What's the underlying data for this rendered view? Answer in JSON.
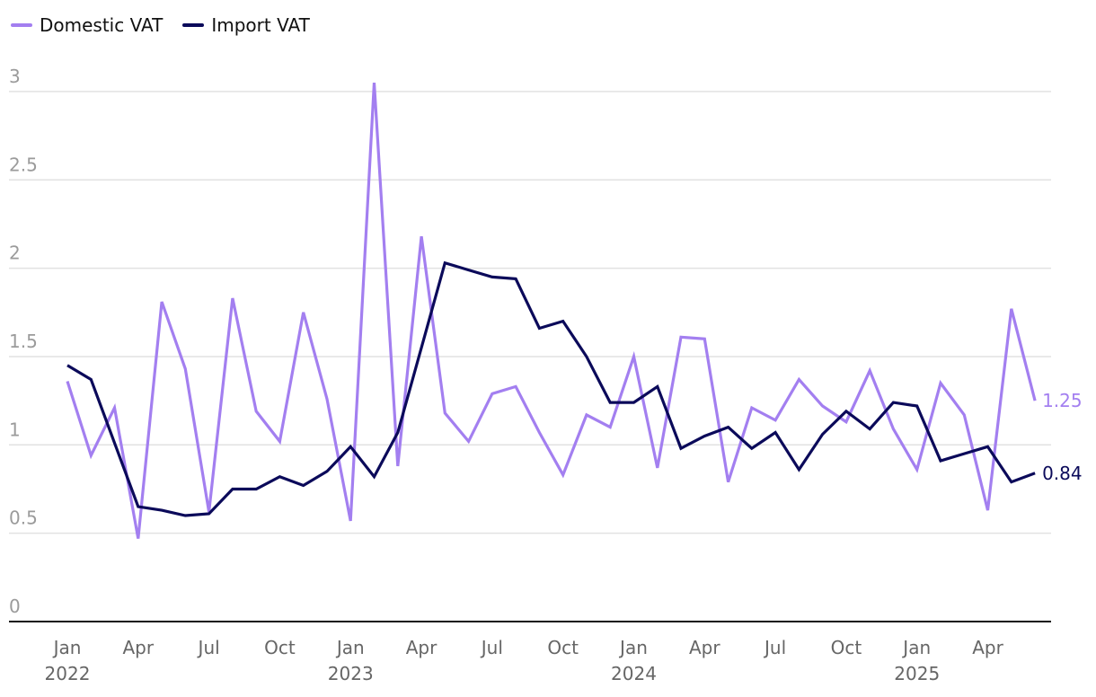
{
  "chart_data": {
    "type": "line",
    "x_start": "2022-01",
    "x": [
      "2022-01",
      "2022-02",
      "2022-03",
      "2022-04",
      "2022-05",
      "2022-06",
      "2022-07",
      "2022-08",
      "2022-09",
      "2022-10",
      "2022-11",
      "2022-12",
      "2023-01",
      "2023-02",
      "2023-03",
      "2023-04",
      "2023-05",
      "2023-06",
      "2023-07",
      "2023-08",
      "2023-09",
      "2023-10",
      "2023-11",
      "2023-12",
      "2024-01",
      "2024-02",
      "2024-03",
      "2024-04",
      "2024-05",
      "2024-06",
      "2024-07",
      "2024-08",
      "2024-09",
      "2024-10",
      "2024-11",
      "2024-12",
      "2025-01",
      "2025-02",
      "2025-03",
      "2025-04",
      "2025-05",
      "2025-06"
    ],
    "series": [
      {
        "name": "Domestic VAT",
        "color": "#a37ff0",
        "end_label": "1.25",
        "values": [
          1.36,
          0.94,
          1.21,
          0.47,
          1.81,
          1.43,
          0.62,
          1.83,
          1.19,
          1.02,
          1.75,
          1.26,
          0.57,
          3.05,
          0.88,
          2.18,
          1.18,
          1.02,
          1.29,
          1.33,
          1.07,
          0.83,
          1.17,
          1.1,
          1.5,
          0.87,
          1.61,
          1.6,
          0.79,
          1.21,
          1.14,
          1.37,
          1.22,
          1.13,
          1.42,
          1.09,
          0.86,
          1.35,
          1.17,
          0.63,
          1.77,
          1.25
        ]
      },
      {
        "name": "Import VAT",
        "color": "#0b0a5a",
        "end_label": "0.84",
        "values": [
          1.45,
          1.37,
          null,
          0.65,
          0.63,
          0.6,
          0.61,
          0.75,
          0.75,
          0.82,
          0.77,
          0.85,
          0.99,
          0.82,
          1.07,
          1.55,
          2.03,
          1.99,
          1.95,
          1.94,
          1.66,
          1.7,
          1.5,
          1.24,
          1.24,
          1.33,
          0.98,
          1.05,
          1.1,
          0.98,
          1.07,
          0.86,
          1.06,
          1.19,
          1.09,
          1.24,
          1.22,
          0.91,
          0.95,
          0.99,
          0.79,
          0.84
        ]
      }
    ],
    "y_ticks": [
      "0",
      "0.5",
      "1",
      "1.5",
      "2",
      "2.5",
      "3"
    ],
    "ylim": [
      0,
      3.1
    ],
    "x_tick_labels": [
      {
        "month": "Jan",
        "year": "2022",
        "index": 0
      },
      {
        "month": "Apr",
        "year": "",
        "index": 3
      },
      {
        "month": "Jul",
        "year": "",
        "index": 6
      },
      {
        "month": "Oct",
        "year": "",
        "index": 9
      },
      {
        "month": "Jan",
        "year": "2023",
        "index": 12
      },
      {
        "month": "Apr",
        "year": "",
        "index": 15
      },
      {
        "month": "Jul",
        "year": "",
        "index": 18
      },
      {
        "month": "Oct",
        "year": "",
        "index": 21
      },
      {
        "month": "Jan",
        "year": "2024",
        "index": 24
      },
      {
        "month": "Apr",
        "year": "",
        "index": 27
      },
      {
        "month": "Jul",
        "year": "",
        "index": 30
      },
      {
        "month": "Oct",
        "year": "",
        "index": 33
      },
      {
        "month": "Jan",
        "year": "2025",
        "index": 36
      },
      {
        "month": "Apr",
        "year": "",
        "index": 39
      }
    ],
    "grid": true,
    "legend": "top-left",
    "title": "",
    "xlabel": "",
    "ylabel": ""
  },
  "legend": {
    "domestic_label": "Domestic VAT",
    "import_label": "Import VAT"
  }
}
